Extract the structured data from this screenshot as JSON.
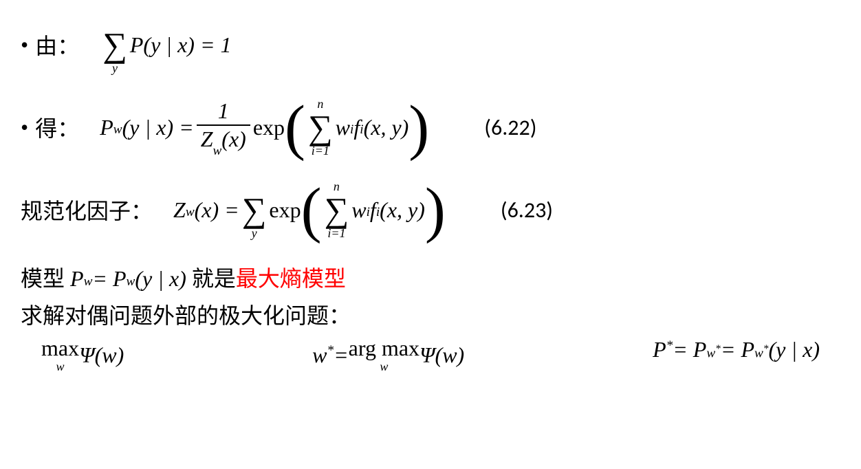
{
  "row1": {
    "bullet": "•",
    "label": "由：",
    "formula_lhs": "P(y | x) = 1",
    "sum_below": "y"
  },
  "row2": {
    "bullet": "•",
    "label": "得：",
    "lhs": "P",
    "lhs_sub": "w",
    "lhs_arg": "(y | x) = ",
    "frac_num": "1",
    "frac_den_Z": "Z",
    "frac_den_sub": "w",
    "frac_den_arg": "(x)",
    "exp": "exp",
    "inner_sum_above": "n",
    "inner_sum_below": "i=1",
    "inner_w": "w",
    "inner_w_sub": "i",
    "inner_f": " f",
    "inner_f_sub": "i",
    "inner_arg": "(x, y)",
    "eqnum": "(6.22)"
  },
  "row3": {
    "label": "规范化因子：",
    "Z": "Z",
    "Z_sub": "w",
    "Z_arg": "(x) = ",
    "outer_sum_below": "y",
    "exp": "exp",
    "inner_sum_above": "n",
    "inner_sum_below": "i=1",
    "inner_w": "w",
    "inner_w_sub": "i",
    "inner_f": " f",
    "inner_f_sub": "i",
    "inner_arg": "(x, y)",
    "eqnum": "(6.23)"
  },
  "line4": {
    "pre": "模型 ",
    "P": "P",
    "P_sub": "w",
    "eq": " = P",
    "eq_sub": "w",
    "arg": "(y | x)",
    "mid": " 就是",
    "highlight": "最大熵模型"
  },
  "line5": {
    "text": "求解对偶问题外部的极大化问题："
  },
  "bottom": {
    "max1_top": "max",
    "max1_bot": "w",
    "psi1": " Ψ(w)",
    "wstar_lhs": "w",
    "wstar_sup": "*",
    "wstar_eq": " = ",
    "argmax_top": "arg max",
    "argmax_bot": "w",
    "psi2": " Ψ(w)",
    "p_lhs": "P",
    "p_sup": "*",
    "p_eq": " = P",
    "p_sub1": "w",
    "p_sub1_sup": "*",
    "p_eq2": " = P",
    "p_sub2": "w",
    "p_sub2_sup": "*",
    "p_arg": "(y | x)"
  }
}
